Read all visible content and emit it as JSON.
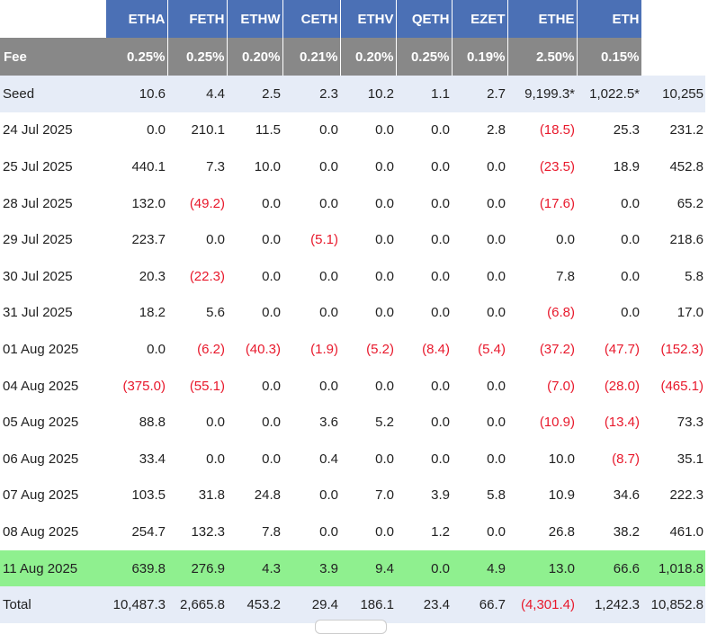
{
  "columns": [
    "ETHA",
    "FETH",
    "ETHW",
    "CETH",
    "ETHV",
    "QETH",
    "EZET",
    "ETHE",
    "ETH"
  ],
  "fee": {
    "label": "Fee",
    "values": [
      "0.25%",
      "0.25%",
      "0.20%",
      "0.21%",
      "0.20%",
      "0.25%",
      "0.19%",
      "2.50%",
      "0.15%"
    ]
  },
  "rows": [
    {
      "date": "Seed",
      "cells": [
        "10.6",
        "4.4",
        "2.5",
        "2.3",
        "10.2",
        "1.1",
        "2.7",
        "9,199.3*",
        "1,022.5*",
        "10,255"
      ]
    },
    {
      "date": "24 Jul 2025",
      "cells": [
        "0.0",
        "210.1",
        "11.5",
        "0.0",
        "0.0",
        "0.0",
        "2.8",
        "(18.5)",
        "25.3",
        "231.2"
      ]
    },
    {
      "date": "25 Jul 2025",
      "cells": [
        "440.1",
        "7.3",
        "10.0",
        "0.0",
        "0.0",
        "0.0",
        "0.0",
        "(23.5)",
        "18.9",
        "452.8"
      ]
    },
    {
      "date": "28 Jul 2025",
      "cells": [
        "132.0",
        "(49.2)",
        "0.0",
        "0.0",
        "0.0",
        "0.0",
        "0.0",
        "(17.6)",
        "0.0",
        "65.2"
      ]
    },
    {
      "date": "29 Jul 2025",
      "cells": [
        "223.7",
        "0.0",
        "0.0",
        "(5.1)",
        "0.0",
        "0.0",
        "0.0",
        "0.0",
        "0.0",
        "218.6"
      ]
    },
    {
      "date": "30 Jul 2025",
      "cells": [
        "20.3",
        "(22.3)",
        "0.0",
        "0.0",
        "0.0",
        "0.0",
        "0.0",
        "7.8",
        "0.0",
        "5.8"
      ]
    },
    {
      "date": "31 Jul 2025",
      "cells": [
        "18.2",
        "5.6",
        "0.0",
        "0.0",
        "0.0",
        "0.0",
        "0.0",
        "(6.8)",
        "0.0",
        "17.0"
      ]
    },
    {
      "date": "01 Aug 2025",
      "cells": [
        "0.0",
        "(6.2)",
        "(40.3)",
        "(1.9)",
        "(5.2)",
        "(8.4)",
        "(5.4)",
        "(37.2)",
        "(47.7)",
        "(152.3)"
      ]
    },
    {
      "date": "04 Aug 2025",
      "cells": [
        "(375.0)",
        "(55.1)",
        "0.0",
        "0.0",
        "0.0",
        "0.0",
        "0.0",
        "(7.0)",
        "(28.0)",
        "(465.1)"
      ]
    },
    {
      "date": "05 Aug 2025",
      "cells": [
        "88.8",
        "0.0",
        "0.0",
        "3.6",
        "5.2",
        "0.0",
        "0.0",
        "(10.9)",
        "(13.4)",
        "73.3"
      ]
    },
    {
      "date": "06 Aug 2025",
      "cells": [
        "33.4",
        "0.0",
        "0.0",
        "0.4",
        "0.0",
        "0.0",
        "0.0",
        "10.0",
        "(8.7)",
        "35.1"
      ]
    },
    {
      "date": "07 Aug 2025",
      "cells": [
        "103.5",
        "31.8",
        "24.8",
        "0.0",
        "7.0",
        "3.9",
        "5.8",
        "10.9",
        "34.6",
        "222.3"
      ]
    },
    {
      "date": "08 Aug 2025",
      "cells": [
        "254.7",
        "132.3",
        "7.8",
        "0.0",
        "0.0",
        "1.2",
        "0.0",
        "26.8",
        "38.2",
        "461.0"
      ]
    },
    {
      "date": "11 Aug 2025",
      "cells": [
        "639.8",
        "276.9",
        "4.3",
        "3.9",
        "9.4",
        "0.0",
        "4.9",
        "13.0",
        "66.6",
        "1,018.8"
      ]
    },
    {
      "date": "Total",
      "cells": [
        "10,487.3",
        "2,665.8",
        "453.2",
        "29.4",
        "186.1",
        "23.4",
        "66.7",
        "(4,301.4)",
        "1,242.3",
        "10,852.8"
      ]
    }
  ],
  "highlight_row": "11 Aug 2025",
  "colors": {
    "header_blue": "#4b70b5",
    "fee_gray": "#888888",
    "seed_bg": "#e6ecf7",
    "highlight_green": "#8ff08f",
    "negative_red": "#e8192c"
  }
}
